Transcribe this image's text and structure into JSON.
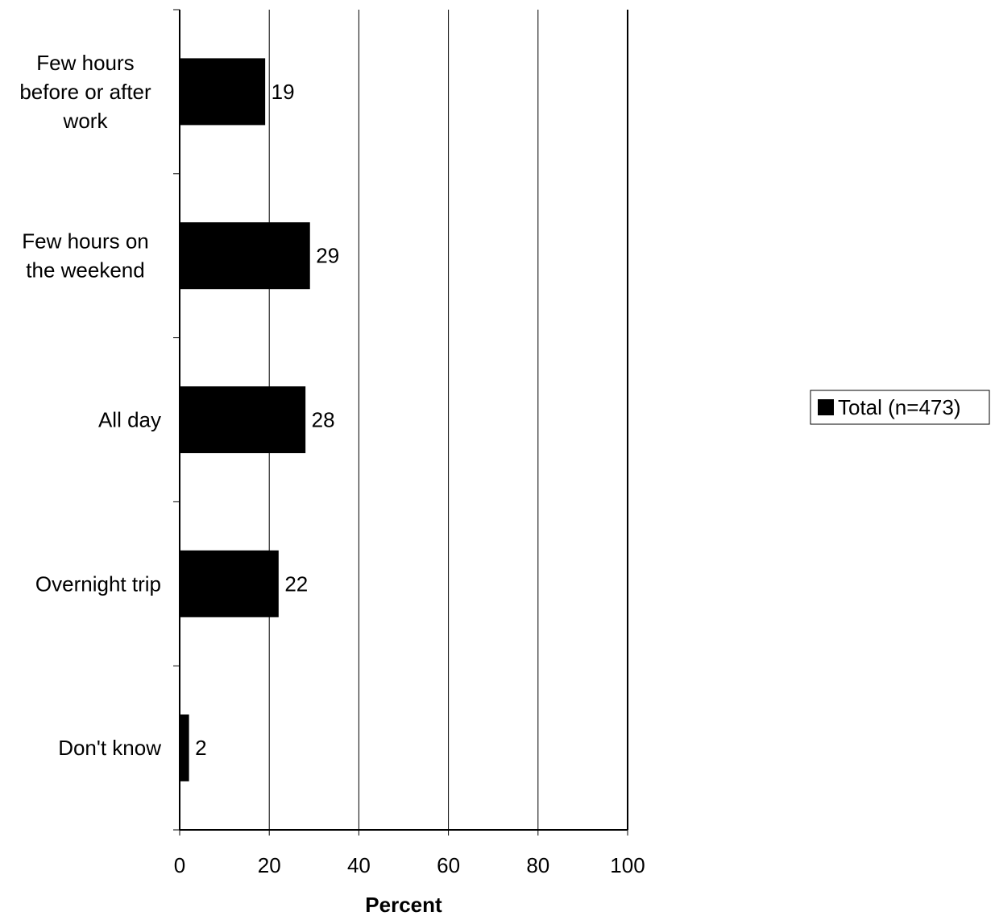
{
  "chart_data": {
    "type": "bar",
    "orientation": "horizontal",
    "categories": [
      [
        "Few hours",
        "before or after",
        "work"
      ],
      [
        "Few hours on",
        "the weekend"
      ],
      [
        "All day"
      ],
      [
        "Overnight trip"
      ],
      [
        "Don't know"
      ]
    ],
    "series": [
      {
        "name": "Total (n=473)",
        "values": [
          19,
          29,
          28,
          22,
          2
        ],
        "color": "#000000"
      }
    ],
    "xlabel": "Percent",
    "xlim": [
      0,
      100
    ],
    "xticks": [
      0,
      20,
      40,
      60,
      80,
      100
    ],
    "grid": "vertical",
    "legend": "right"
  }
}
